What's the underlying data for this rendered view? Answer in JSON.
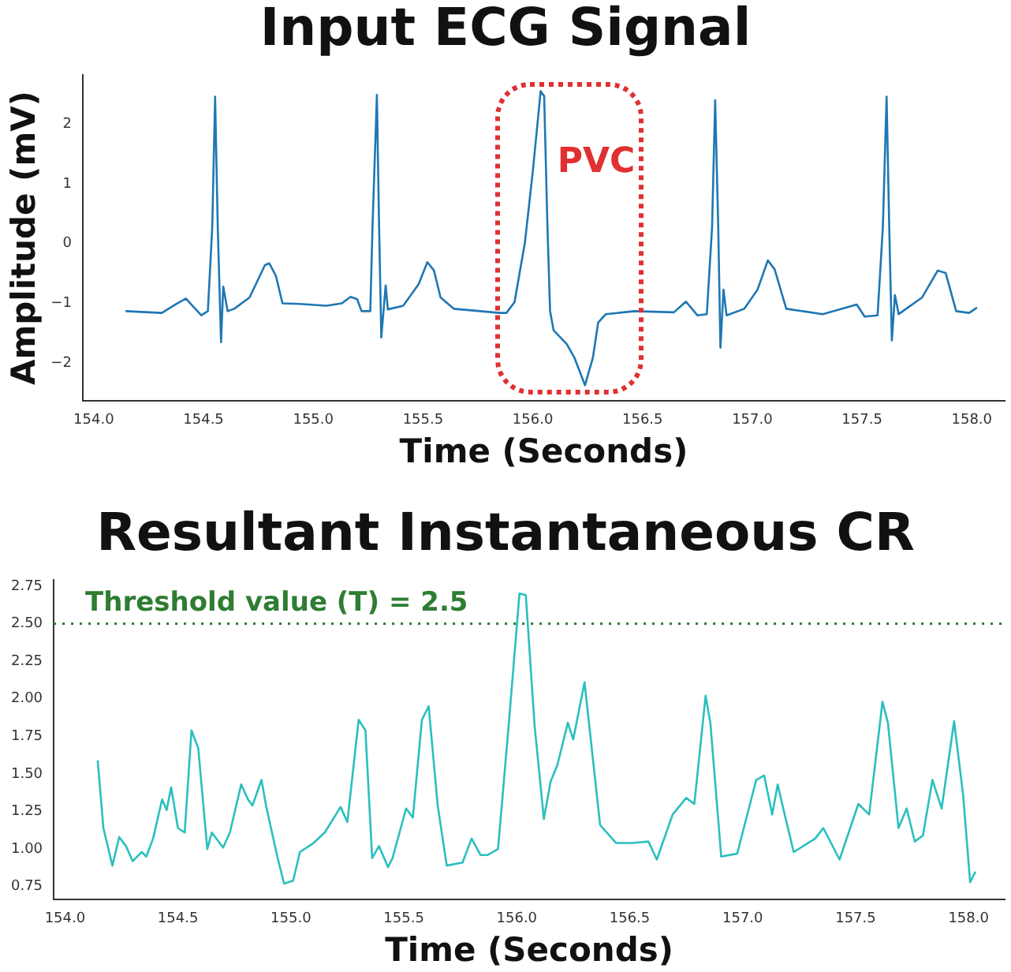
{
  "chart_data": [
    {
      "type": "line",
      "title": "Input ECG Signal",
      "xlabel": "Time (Seconds)",
      "ylabel": "Amplitude (mV)",
      "xlim": [
        153.95,
        158.15
      ],
      "ylim": [
        -2.63,
        2.82
      ],
      "xticks": [
        {
          "value": 154,
          "label": "154.0"
        },
        {
          "value": 154.5,
          "label": "154.5"
        },
        {
          "value": 155,
          "label": "155.0"
        },
        {
          "value": 155.5,
          "label": "155.5"
        },
        {
          "value": 156,
          "label": "156.0"
        },
        {
          "value": 156.5,
          "label": "156.5"
        },
        {
          "value": 157,
          "label": "157.0"
        },
        {
          "value": 157.5,
          "label": "157.5"
        },
        {
          "value": 158,
          "label": "158.0"
        }
      ],
      "yticks": [
        {
          "value": -2,
          "label": "−2"
        },
        {
          "value": -1,
          "label": "−1"
        },
        0,
        1,
        2
      ],
      "annotations": [
        "PVC"
      ],
      "series": [
        {
          "color": "#1f77b4",
          "x": [
            154.145,
            154.31,
            154.38,
            154.42,
            154.45,
            154.49,
            154.52,
            154.54,
            154.553,
            154.565,
            154.58,
            154.59,
            154.61,
            154.64,
            154.71,
            154.78,
            154.8,
            154.83,
            154.86,
            154.94,
            155.06,
            155.13,
            155.17,
            155.2,
            155.22,
            155.26,
            155.27,
            155.29,
            155.3,
            155.31,
            155.33,
            155.34,
            155.41,
            155.48,
            155.52,
            155.55,
            155.58,
            155.64,
            155.85,
            155.88,
            155.917,
            155.964,
            156,
            156.036,
            156.052,
            156.067,
            156.079,
            156.095,
            156.155,
            156.19,
            156.238,
            156.274,
            156.298,
            156.333,
            156.464,
            156.643,
            156.698,
            156.75,
            156.793,
            156.817,
            156.831,
            156.845,
            156.855,
            156.869,
            156.883,
            156.964,
            157.024,
            157.071,
            157.102,
            157.155,
            157.321,
            157.476,
            157.512,
            157.571,
            157.595,
            157.612,
            157.624,
            157.636,
            157.65,
            157.667,
            157.774,
            157.845,
            157.881,
            157.929,
            157.988,
            158.024
          ],
          "values": [
            -1.13,
            -1.16,
            -1,
            -0.92,
            -1.04,
            -1.2,
            -1.13,
            0.28,
            2.46,
            0.28,
            -1.65,
            -0.72,
            -1.13,
            -1.09,
            -0.9,
            -0.36,
            -0.33,
            -0.54,
            -1,
            -1.01,
            -1.04,
            -1,
            -0.89,
            -0.93,
            -1.13,
            -1.13,
            0.28,
            2.49,
            0.28,
            -1.57,
            -0.7,
            -1.1,
            -1.04,
            -0.68,
            -0.31,
            -0.45,
            -0.9,
            -1.09,
            -1.16,
            -1.16,
            -0.98,
            0.01,
            1.2,
            2.55,
            2.47,
            0.28,
            -1.13,
            -1.45,
            -1.68,
            -1.91,
            -2.37,
            -1.91,
            -1.32,
            -1.18,
            -1.13,
            -1.15,
            -0.97,
            -1.2,
            -1.18,
            0.28,
            2.4,
            0.28,
            -1.74,
            -0.77,
            -1.2,
            -1.09,
            -0.77,
            -0.28,
            -0.43,
            -1.09,
            -1.18,
            -1.02,
            -1.22,
            -1.2,
            0.28,
            2.46,
            0.28,
            -1.62,
            -0.86,
            -1.18,
            -0.9,
            -0.45,
            -0.49,
            -1.13,
            -1.16,
            -1.07
          ]
        }
      ]
    },
    {
      "type": "line",
      "title": "Resultant Instantaneous CR",
      "xlabel": "Time (Seconds)",
      "xlim": [
        153.95,
        158.16
      ],
      "ylim": [
        0.665,
        2.79
      ],
      "xticks": [
        {
          "value": 154,
          "label": "154.0"
        },
        {
          "value": 154.5,
          "label": "154.5"
        },
        {
          "value": 155,
          "label": "155.0"
        },
        {
          "value": 155.5,
          "label": "155.5"
        },
        {
          "value": 156,
          "label": "156.0"
        },
        {
          "value": 156.5,
          "label": "156.5"
        },
        {
          "value": 157,
          "label": "157.0"
        },
        {
          "value": 157.5,
          "label": "157.5"
        },
        {
          "value": 158,
          "label": "158.0"
        }
      ],
      "yticks": [
        0.75,
        {
          "value": 1,
          "label": "1.00"
        },
        1.25,
        {
          "value": 1.5,
          "label": "1.50"
        },
        1.75,
        {
          "value": 2,
          "label": "2.00"
        },
        2.25,
        {
          "value": 2.5,
          "label": "2.50"
        },
        2.75
      ],
      "ref_lines": [
        {
          "axis": "y",
          "value": 2.5,
          "label": "Threshold value (T) = 2.5",
          "color": "#2e7d32",
          "line_style": "dotted"
        }
      ],
      "series": [
        {
          "color": "#2bbfbf",
          "x": [
            154.145,
            154.17,
            154.21,
            154.24,
            154.27,
            154.3,
            154.34,
            154.36,
            154.39,
            154.43,
            154.45,
            154.47,
            154.5,
            154.53,
            154.56,
            154.59,
            154.63,
            154.65,
            154.7,
            154.73,
            154.78,
            154.81,
            154.83,
            154.87,
            154.89,
            154.94,
            154.97,
            155.01,
            155.04,
            155.1,
            155.15,
            155.22,
            155.25,
            155.3,
            155.33,
            155.36,
            155.39,
            155.43,
            155.45,
            155.51,
            155.54,
            155.58,
            155.61,
            155.65,
            155.69,
            155.76,
            155.8,
            155.84,
            155.87,
            155.917,
            155.964,
            156.012,
            156.04,
            156.079,
            156.12,
            156.15,
            156.18,
            156.226,
            156.25,
            156.3,
            156.369,
            156.44,
            156.512,
            156.583,
            156.62,
            156.69,
            156.75,
            156.786,
            156.836,
            156.857,
            156.905,
            156.976,
            157.06,
            157.095,
            157.131,
            157.155,
            157.186,
            157.226,
            157.321,
            157.357,
            157.429,
            157.512,
            157.56,
            157.619,
            157.643,
            157.69,
            157.726,
            157.762,
            157.798,
            157.84,
            157.881,
            157.936,
            157.976,
            158.007,
            158.031
          ],
          "values": [
            1.59,
            1.14,
            0.89,
            1.08,
            1.02,
            0.92,
            0.98,
            0.95,
            1.07,
            1.33,
            1.26,
            1.41,
            1.14,
            1.11,
            1.79,
            1.67,
            1,
            1.11,
            1.01,
            1.11,
            1.43,
            1.33,
            1.29,
            1.46,
            1.29,
            0.95,
            0.77,
            0.79,
            0.98,
            1.04,
            1.11,
            1.28,
            1.18,
            1.86,
            1.79,
            0.94,
            1.02,
            0.88,
            0.94,
            1.27,
            1.21,
            1.86,
            1.95,
            1.29,
            0.89,
            0.91,
            1.07,
            0.96,
            0.96,
            1,
            1.82,
            2.7,
            2.69,
            1.82,
            1.2,
            1.45,
            1.56,
            1.84,
            1.73,
            2.11,
            1.16,
            1.04,
            1.04,
            1.05,
            0.93,
            1.23,
            1.34,
            1.3,
            2.02,
            1.84,
            0.95,
            0.97,
            1.46,
            1.49,
            1.23,
            1.43,
            1.23,
            0.98,
            1.07,
            1.14,
            0.93,
            1.3,
            1.23,
            1.98,
            1.84,
            1.14,
            1.27,
            1.05,
            1.09,
            1.46,
            1.27,
            1.85,
            1.36,
            0.78,
            0.85
          ]
        }
      ]
    }
  ]
}
